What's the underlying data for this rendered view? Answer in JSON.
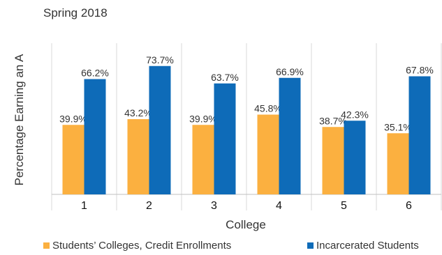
{
  "chart_data": {
    "type": "bar",
    "title": "Spring 2018",
    "xlabel": "College",
    "ylabel": "Percentage Earning an A",
    "categories": [
      "1",
      "2",
      "3",
      "4",
      "5",
      "6"
    ],
    "series": [
      {
        "name": "Students’ Colleges, Credit Enrollments",
        "color": "#FBB040",
        "values": [
          39.9,
          43.2,
          39.9,
          45.8,
          38.7,
          35.1
        ],
        "labels": [
          "39.9%",
          "43.2%",
          "39.9%",
          "45.8%",
          "38.7%",
          "35.1%"
        ]
      },
      {
        "name": "Incarcerated Students",
        "color": "#0E6BB8",
        "values": [
          66.2,
          73.7,
          63.7,
          66.9,
          42.3,
          67.8
        ],
        "labels": [
          "66.2%",
          "73.7%",
          "63.7%",
          "66.9%",
          "42.3%",
          "67.8%"
        ]
      }
    ],
    "ylim": [
      0,
      100
    ],
    "grid": false,
    "legend_position": "bottom"
  }
}
